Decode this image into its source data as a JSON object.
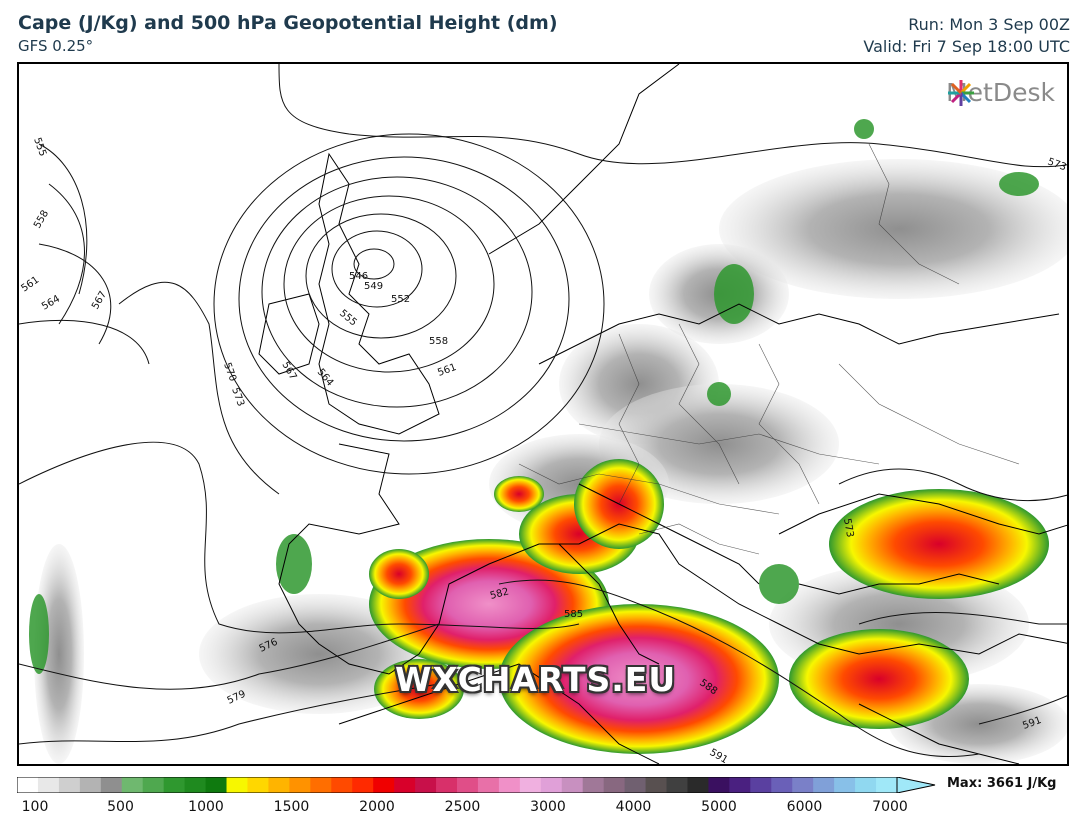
{
  "header": {
    "title": "Cape (J/Kg) and 500 hPa Geopotential Height (dm)",
    "model": "GFS 0.25°",
    "run": "Run: Mon 3 Sep 00Z",
    "valid": "Valid: Fri 7 Sep 18:00 UTC"
  },
  "brand": {
    "name": "MetDesk",
    "icon": "metdesk-star-icon"
  },
  "watermark": "WXCHARTS.EU",
  "contour_labels": [
    "555",
    "558",
    "561",
    "564",
    "567",
    "570",
    "573",
    "546",
    "549",
    "552",
    "555",
    "558",
    "561",
    "564",
    "567",
    "582",
    "585",
    "588",
    "591",
    "576",
    "579",
    "573",
    "573",
    "591"
  ],
  "colorbar": {
    "max_label": "Max: 3661 J/Kg",
    "ticks": [
      "100",
      "500",
      "1000",
      "1500",
      "2000",
      "2500",
      "3000",
      "4000",
      "5000",
      "6000",
      "7000"
    ],
    "colors": [
      "#ffffff",
      "#e8e8e8",
      "#cfcfcf",
      "#b3b3b3",
      "#8f8f8f",
      "#6fb86f",
      "#4fa84f",
      "#2f982f",
      "#1f8a1f",
      "#0f7a0f",
      "#f7f700",
      "#ffd700",
      "#ffb400",
      "#ff9200",
      "#ff6e00",
      "#ff4a00",
      "#ff2a00",
      "#f00000",
      "#d8002a",
      "#c8104a",
      "#d8306a",
      "#e04e88",
      "#e870a8",
      "#f090c8",
      "#f0b0e0",
      "#e0a0d8",
      "#c890c0",
      "#a07898",
      "#886880",
      "#706070",
      "#585050",
      "#404040",
      "#2a2a2a",
      "#3a1060",
      "#4a2080",
      "#5a40a0",
      "#6a60b8",
      "#7a80c8",
      "#80a0d8",
      "#88c0e8",
      "#90d8f0",
      "#a0e8f8"
    ],
    "accent": "#1f3a4d"
  }
}
